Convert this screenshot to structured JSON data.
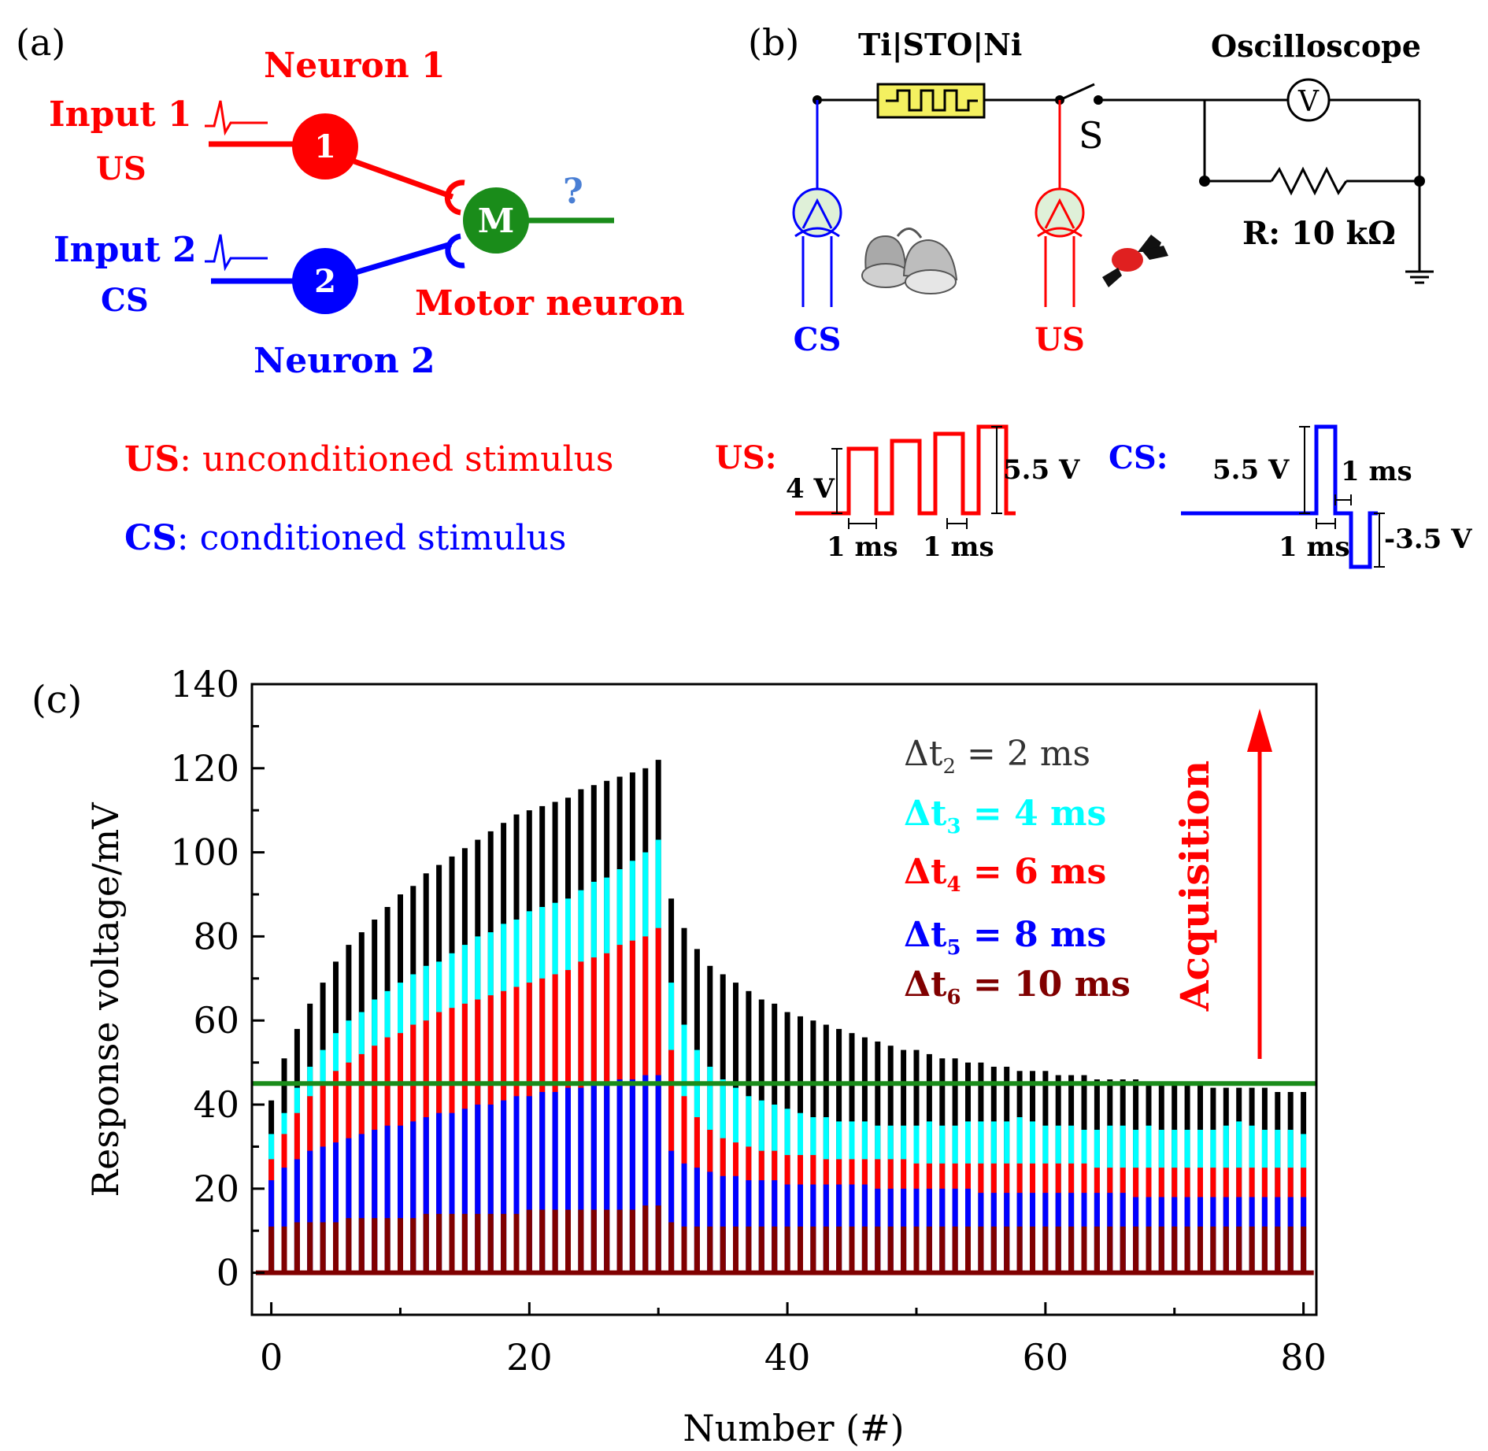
{
  "colors": {
    "red": "#ff0000",
    "blue": "#0000ff",
    "green": "#1a8c1a",
    "black": "#000000",
    "cyan": "#00ffff",
    "darkred": "#800000",
    "box_yellow": "#f4f060",
    "source_fill": "#dff0d8"
  },
  "panel_a": {
    "panel_label": "(a)",
    "neuron1_title": "Neuron 1",
    "input1_label": "Input 1",
    "input1_sub": "US",
    "neuron1_num": "1",
    "input2_label": "Input 2",
    "input2_sub": "CS",
    "neuron2_num": "2",
    "motor_letter": "M",
    "question": "?",
    "motor_label": "Motor neuron",
    "neuron2_title": "Neuron 2",
    "legend_us_key": "US",
    "legend_us_text": ": unconditioned stimulus",
    "legend_cs_key": "CS",
    "legend_cs_text": ": conditioned stimulus"
  },
  "panel_b": {
    "panel_label": "(b)",
    "device_label": "Ti|STO|Ni",
    "oscilloscope_label": "Oscilloscope",
    "switch_label": "S",
    "voltmeter_symbol": "V",
    "resistor_label": "R: 10 kΩ",
    "cs_source_label": "CS",
    "us_source_label": "US",
    "us_wave_title": "US:",
    "us_low_amp": "4 V",
    "us_high_amp": "5.5 V",
    "us_width1": "1 ms",
    "us_width2": "1 ms",
    "cs_wave_title": "CS:",
    "cs_pos_amp": "5.5 V",
    "cs_width_top": "1 ms",
    "cs_width_bottom": "1 ms",
    "cs_neg_amp": "-3.5 V"
  },
  "panel_c": {
    "panel_label": "(c)",
    "acquisition_label": "Acquisition",
    "legend": [
      {
        "prefix": "Δt",
        "sub": "2",
        "rest": " = 2 ms",
        "color": "#333333"
      },
      {
        "prefix": "Δt",
        "sub": "3",
        "rest": " = 4 ms",
        "color": "#00ffff"
      },
      {
        "prefix": "Δt",
        "sub": "4",
        "rest": " = 6 ms",
        "color": "#ff0000"
      },
      {
        "prefix": "Δt",
        "sub": "5",
        "rest": " = 8 ms",
        "color": "#0000ff"
      },
      {
        "prefix": "Δt",
        "sub": "6",
        "rest": " = 10 ms",
        "color": "#800000"
      }
    ]
  },
  "chart_data": {
    "type": "bar",
    "xlabel": "Number (#)",
    "ylabel": "Response voltage/mV",
    "xlim": [
      -1.5,
      81
    ],
    "ylim": [
      -10,
      140
    ],
    "xticks": [
      "0",
      "20",
      "40",
      "60",
      "80"
    ],
    "yticks": [
      "0",
      "20",
      "40",
      "60",
      "80",
      "100",
      "120",
      "140"
    ],
    "x": [
      0,
      1,
      2,
      3,
      4,
      5,
      6,
      7,
      8,
      9,
      10,
      11,
      12,
      13,
      14,
      15,
      16,
      17,
      18,
      19,
      20,
      21,
      22,
      23,
      24,
      25,
      26,
      27,
      28,
      29,
      30,
      31,
      32,
      33,
      34,
      35,
      36,
      37,
      38,
      39,
      40,
      41,
      42,
      43,
      44,
      45,
      46,
      47,
      48,
      49,
      50,
      51,
      52,
      53,
      54,
      55,
      56,
      57,
      58,
      59,
      60,
      61,
      62,
      63,
      64,
      65,
      66,
      67,
      68,
      69,
      70,
      71,
      72,
      73,
      74,
      75,
      76,
      77,
      78,
      79,
      80
    ],
    "threshold": 45,
    "threshold_color": "#1a8c1a",
    "series": [
      {
        "name": "Δt2 = 2 ms",
        "color": "#000000",
        "values": [
          41,
          51,
          58,
          64,
          69,
          74,
          78,
          81,
          84,
          87,
          90,
          92,
          95,
          97,
          99,
          101,
          103,
          105,
          107,
          109,
          110,
          111,
          112,
          113,
          115,
          116,
          117,
          118,
          119,
          120,
          122,
          89,
          82,
          77,
          73,
          71,
          69,
          67,
          65,
          64,
          62,
          61,
          60,
          59,
          58,
          57,
          56,
          55,
          54,
          53,
          53,
          52,
          51,
          51,
          50,
          50,
          49,
          49,
          48,
          48,
          48,
          47,
          47,
          47,
          46,
          46,
          46,
          46,
          45,
          45,
          45,
          45,
          45,
          44,
          44,
          44,
          44,
          44,
          43,
          43,
          43
        ]
      },
      {
        "name": "Δt3 = 4 ms",
        "color": "#00ffff",
        "values": [
          33,
          38,
          44,
          49,
          53,
          57,
          60,
          62,
          65,
          67,
          69,
          71,
          73,
          74,
          76,
          78,
          80,
          81,
          83,
          84,
          86,
          87,
          88,
          89,
          91,
          93,
          94,
          96,
          98,
          100,
          103,
          69,
          59,
          53,
          49,
          46,
          44,
          42,
          41,
          40,
          39,
          38,
          37,
          37,
          36,
          36,
          36,
          35,
          35,
          35,
          35,
          36,
          35,
          35,
          36,
          36,
          36,
          36,
          37,
          36,
          35,
          35,
          35,
          34,
          34,
          35,
          35,
          34,
          35,
          34,
          34,
          34,
          34,
          34,
          35,
          36,
          35,
          34,
          34,
          34,
          33
        ]
      },
      {
        "name": "Δt4 = 6 ms",
        "color": "#ff0000",
        "values": [
          27,
          33,
          38,
          42,
          45,
          48,
          50,
          52,
          54,
          56,
          57,
          59,
          60,
          62,
          63,
          64,
          65,
          66,
          67,
          68,
          69,
          70,
          71,
          72,
          74,
          75,
          76,
          78,
          79,
          80,
          82,
          53,
          42,
          37,
          34,
          32,
          31,
          30,
          29,
          29,
          28,
          28,
          28,
          27,
          27,
          27,
          27,
          27,
          27,
          27,
          26,
          26,
          26,
          26,
          26,
          26,
          26,
          26,
          26,
          26,
          26,
          26,
          26,
          26,
          25,
          25,
          25,
          25,
          25,
          25,
          25,
          25,
          25,
          25,
          25,
          25,
          25,
          25,
          25,
          25,
          25
        ]
      },
      {
        "name": "Δt5 = 8 ms",
        "color": "#0000ff",
        "values": [
          22,
          25,
          27,
          29,
          30,
          31,
          32,
          33,
          34,
          35,
          35,
          36,
          37,
          38,
          38,
          39,
          40,
          40,
          41,
          42,
          42,
          43,
          43,
          44,
          44,
          45,
          45,
          46,
          46,
          47,
          47,
          29,
          26,
          25,
          24,
          23,
          23,
          22,
          22,
          22,
          21,
          21,
          21,
          21,
          21,
          21,
          21,
          20,
          20,
          20,
          20,
          20,
          20,
          20,
          20,
          19,
          19,
          19,
          19,
          19,
          19,
          19,
          19,
          19,
          19,
          19,
          19,
          18,
          18,
          18,
          18,
          18,
          18,
          18,
          18,
          18,
          18,
          18,
          18,
          18,
          18
        ]
      },
      {
        "name": "Δt6 = 10 ms",
        "color": "#800000",
        "values": [
          11,
          11,
          12,
          12,
          12,
          12,
          13,
          13,
          13,
          13,
          13,
          13,
          14,
          14,
          14,
          14,
          14,
          14,
          14,
          14,
          15,
          15,
          15,
          15,
          15,
          15,
          15,
          15,
          15,
          16,
          16,
          12,
          11,
          11,
          11,
          11,
          11,
          11,
          11,
          11,
          11,
          11,
          11,
          11,
          11,
          11,
          11,
          11,
          11,
          11,
          11,
          11,
          11,
          11,
          11,
          11,
          11,
          11,
          11,
          11,
          11,
          11,
          11,
          11,
          11,
          11,
          11,
          11,
          11,
          11,
          11,
          11,
          11,
          11,
          11,
          11,
          11,
          11,
          11,
          11,
          11
        ]
      }
    ]
  }
}
